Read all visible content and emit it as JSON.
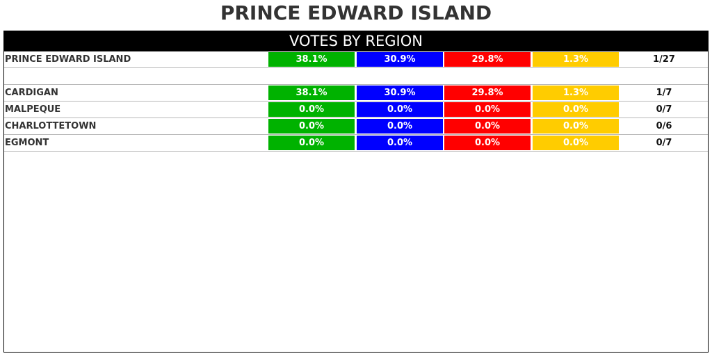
{
  "title": "PRINCE EDWARD ISLAND",
  "header": "VOTES BY REGION",
  "colors": {
    "green": "#00b200",
    "blue": "#0000ff",
    "red": "#ff0000",
    "yellow": "#ffcc00"
  },
  "rows": [
    {
      "name": "PRINCE EDWARD ISLAND",
      "green": "38.1%",
      "blue": "30.9%",
      "red": "29.8%",
      "yellow": "1.3%",
      "seats": "1/27"
    },
    {
      "name": "CARDIGAN",
      "green": "38.1%",
      "blue": "30.9%",
      "red": "29.8%",
      "yellow": "1.3%",
      "seats": "1/7"
    },
    {
      "name": "MALPEQUE",
      "green": "0.0%",
      "blue": "0.0%",
      "red": "0.0%",
      "yellow": "0.0%",
      "seats": "0/7"
    },
    {
      "name": "CHARLOTTETOWN",
      "green": "0.0%",
      "blue": "0.0%",
      "red": "0.0%",
      "yellow": "0.0%",
      "seats": "0/6"
    },
    {
      "name": "EGMONT",
      "green": "0.0%",
      "blue": "0.0%",
      "red": "0.0%",
      "yellow": "0.0%",
      "seats": "0/7"
    }
  ]
}
